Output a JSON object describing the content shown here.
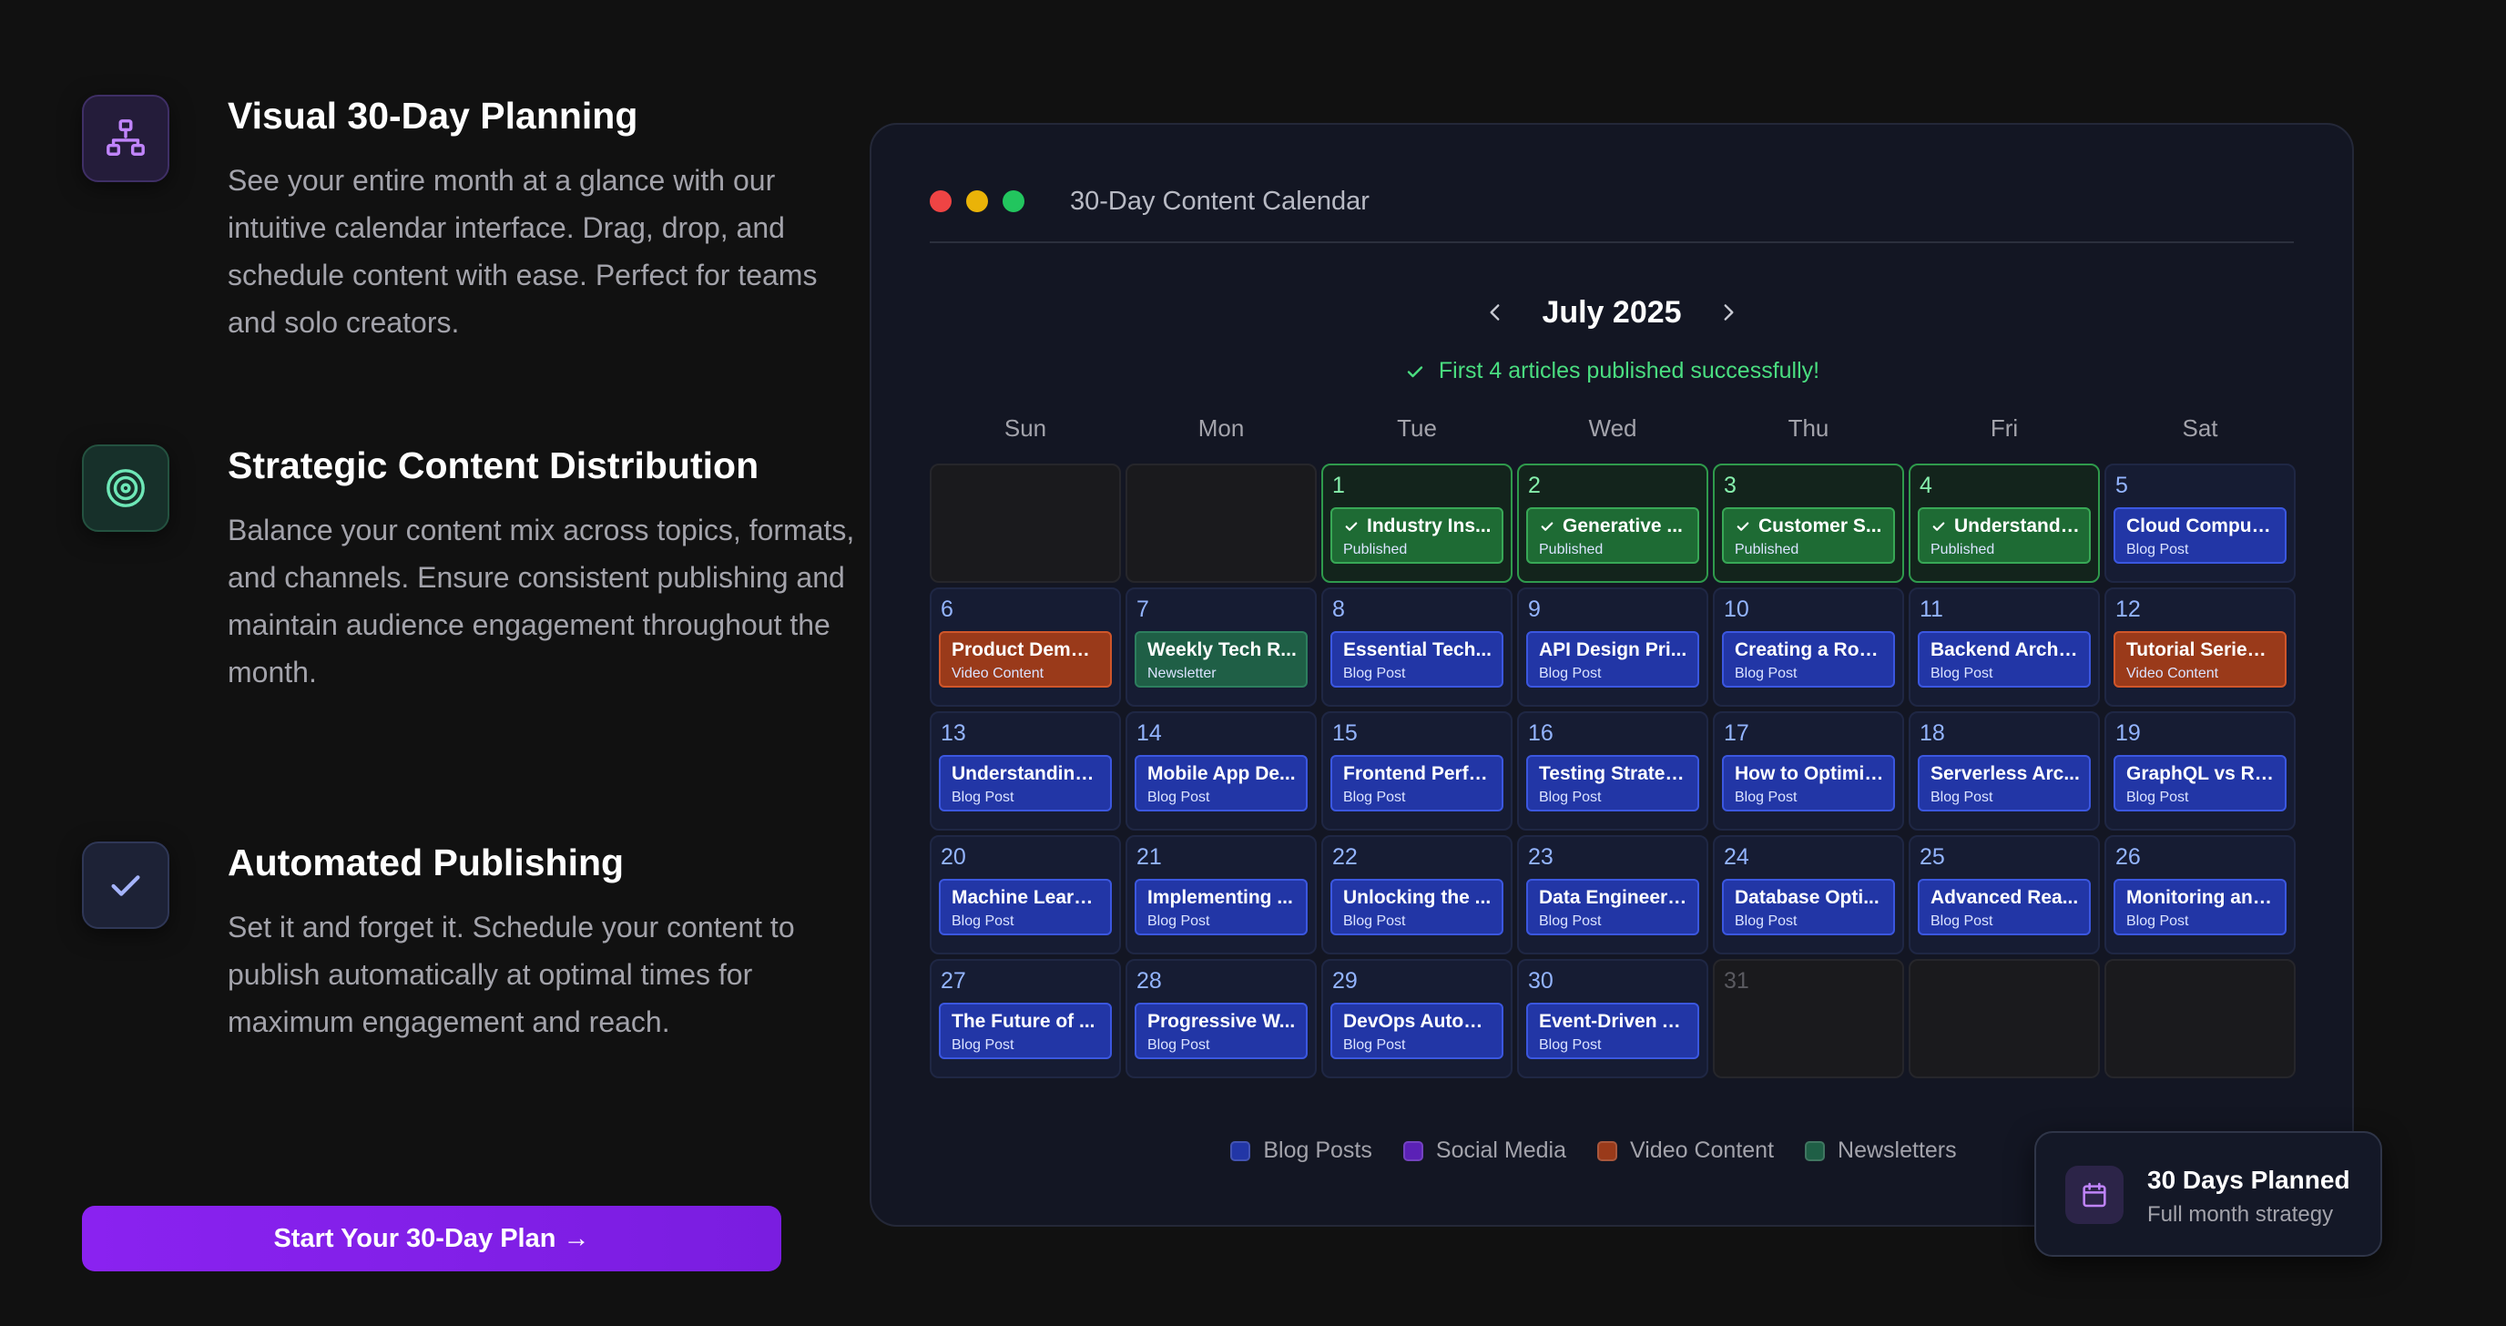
{
  "features": [
    {
      "title": "Visual 30-Day Planning",
      "description": "See your entire month at a glance with our intuitive calendar interface. Drag, drop, and schedule content with ease. Perfect for teams and solo creators.",
      "icon": "sitemap-icon"
    },
    {
      "title": "Strategic Content Distribution",
      "description": "Balance your content mix across topics, formats, and channels. Ensure consistent publishing and maintain audience engagement throughout the month.",
      "icon": "target-icon"
    },
    {
      "title": "Automated Publishing",
      "description": "Set it and forget it. Schedule your content to publish automatically at optimal times for maximum engagement and reach.",
      "icon": "check-icon"
    }
  ],
  "cta_label": "Start Your 30-Day Plan →",
  "calendar": {
    "window_title": "30-Day Content Calendar",
    "month_label": "July 2025",
    "status_message": "First 4 articles published successfully!",
    "weekdays": [
      "Sun",
      "Mon",
      "Tue",
      "Wed",
      "Thu",
      "Fri",
      "Sat"
    ],
    "days": [
      {
        "day": "",
        "kind": "empty"
      },
      {
        "day": "",
        "kind": "empty"
      },
      {
        "day": "1",
        "kind": "pub",
        "title": "Industry Ins...",
        "type": "Published"
      },
      {
        "day": "2",
        "kind": "pub",
        "title": "Generative ...",
        "type": "Published"
      },
      {
        "day": "3",
        "kind": "pub",
        "title": "Customer S...",
        "type": "Published"
      },
      {
        "day": "4",
        "kind": "pub",
        "title": "Understandi...",
        "type": "Published"
      },
      {
        "day": "5",
        "kind": "blog",
        "title": "Cloud Computi...",
        "type": "Blog Post"
      },
      {
        "day": "6",
        "kind": "video",
        "title": "Product Demo ...",
        "type": "Video Content"
      },
      {
        "day": "7",
        "kind": "news",
        "title": "Weekly Tech R...",
        "type": "Newsletter"
      },
      {
        "day": "8",
        "kind": "blog",
        "title": "Essential Tech...",
        "type": "Blog Post"
      },
      {
        "day": "9",
        "kind": "blog",
        "title": "API Design Pri...",
        "type": "Blog Post"
      },
      {
        "day": "10",
        "kind": "blog",
        "title": "Creating a Rob...",
        "type": "Blog Post"
      },
      {
        "day": "11",
        "kind": "blog",
        "title": "Backend Archit...",
        "type": "Blog Post"
      },
      {
        "day": "12",
        "kind": "video",
        "title": "Tutorial Series ...",
        "type": "Video Content"
      },
      {
        "day": "13",
        "kind": "blog",
        "title": "Understanding...",
        "type": "Blog Post"
      },
      {
        "day": "14",
        "kind": "blog",
        "title": "Mobile App De...",
        "type": "Blog Post"
      },
      {
        "day": "15",
        "kind": "blog",
        "title": "Frontend Perfo...",
        "type": "Blog Post"
      },
      {
        "day": "16",
        "kind": "blog",
        "title": "Testing Strateg...",
        "type": "Blog Post"
      },
      {
        "day": "17",
        "kind": "blog",
        "title": "How to Optimiz...",
        "type": "Blog Post"
      },
      {
        "day": "18",
        "kind": "blog",
        "title": "Serverless Arc...",
        "type": "Blog Post"
      },
      {
        "day": "19",
        "kind": "blog",
        "title": "GraphQL vs RE...",
        "type": "Blog Post"
      },
      {
        "day": "20",
        "kind": "blog",
        "title": "Machine Learn...",
        "type": "Blog Post"
      },
      {
        "day": "21",
        "kind": "blog",
        "title": "Implementing ...",
        "type": "Blog Post"
      },
      {
        "day": "22",
        "kind": "blog",
        "title": "Unlocking the ...",
        "type": "Blog Post"
      },
      {
        "day": "23",
        "kind": "blog",
        "title": "Data Engineeri...",
        "type": "Blog Post"
      },
      {
        "day": "24",
        "kind": "blog",
        "title": "Database Opti...",
        "type": "Blog Post"
      },
      {
        "day": "25",
        "kind": "blog",
        "title": "Advanced Rea...",
        "type": "Blog Post"
      },
      {
        "day": "26",
        "kind": "blog",
        "title": "Monitoring and...",
        "type": "Blog Post"
      },
      {
        "day": "27",
        "kind": "blog",
        "title": "The Future of ...",
        "type": "Blog Post"
      },
      {
        "day": "28",
        "kind": "blog",
        "title": "Progressive W...",
        "type": "Blog Post"
      },
      {
        "day": "29",
        "kind": "blog",
        "title": "DevOps Autom...",
        "type": "Blog Post"
      },
      {
        "day": "30",
        "kind": "blog",
        "title": "Event-Driven A...",
        "type": "Blog Post"
      },
      {
        "day": "31",
        "kind": "empty"
      },
      {
        "day": "",
        "kind": "empty"
      },
      {
        "day": "",
        "kind": "empty"
      }
    ],
    "legend": [
      {
        "label": "Blog Posts",
        "color": "#2236a6"
      },
      {
        "label": "Social Media",
        "color": "#5b21b6"
      },
      {
        "label": "Video Content",
        "color": "#9a3a1a"
      },
      {
        "label": "Newsletters",
        "color": "#1f5f46"
      }
    ]
  },
  "badge": {
    "title": "30 Days Planned",
    "subtitle": "Full month strategy",
    "icon": "calendar-icon"
  },
  "colors": {
    "accent": "#8a22f0",
    "published": "#4ade80",
    "blog": "#2236a6",
    "video": "#9a3a1a",
    "newsletter": "#1f5f46"
  }
}
